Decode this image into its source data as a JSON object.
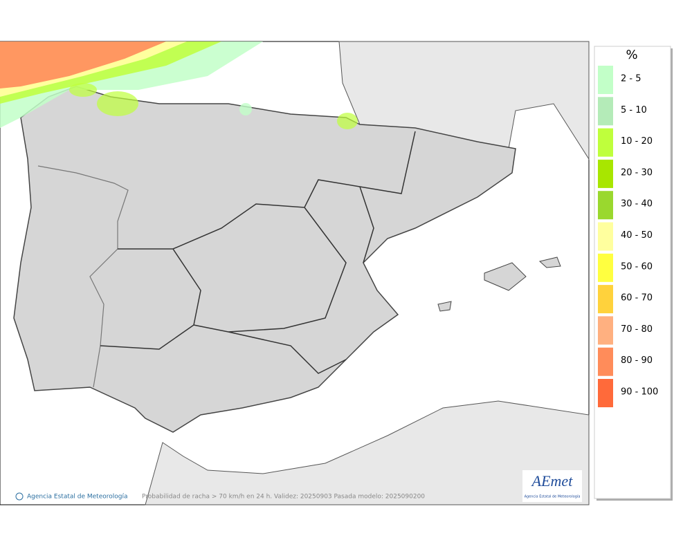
{
  "legend": {
    "title": "%",
    "items": [
      {
        "label": "2 - 5",
        "color": "#c2ffc8"
      },
      {
        "label": "5 - 10",
        "color": "#b4ebb8"
      },
      {
        "label": "10 - 20",
        "color": "#bfff3c"
      },
      {
        "label": "20 - 30",
        "color": "#a8e600"
      },
      {
        "label": "30 - 40",
        "color": "#9ad82e"
      },
      {
        "label": "40 - 50",
        "color": "#ffff9e"
      },
      {
        "label": "50 - 60",
        "color": "#ffff40"
      },
      {
        "label": "60 - 70",
        "color": "#ffd23c"
      },
      {
        "label": "70 - 80",
        "color": "#ffb080"
      },
      {
        "label": "80 - 90",
        "color": "#ff8c5a"
      },
      {
        "label": "90 - 100",
        "color": "#ff6a3a"
      }
    ]
  },
  "footer": {
    "credit": "Agencia Estatal de Meteorología",
    "caption": "Probabilidad de racha > 70 km/h en 24 h. Validez: 20250903 Pasada modelo: 2025090200"
  },
  "logo": {
    "name": "AEmet",
    "subtitle": "Agencia Estatal de Meteorología"
  }
}
